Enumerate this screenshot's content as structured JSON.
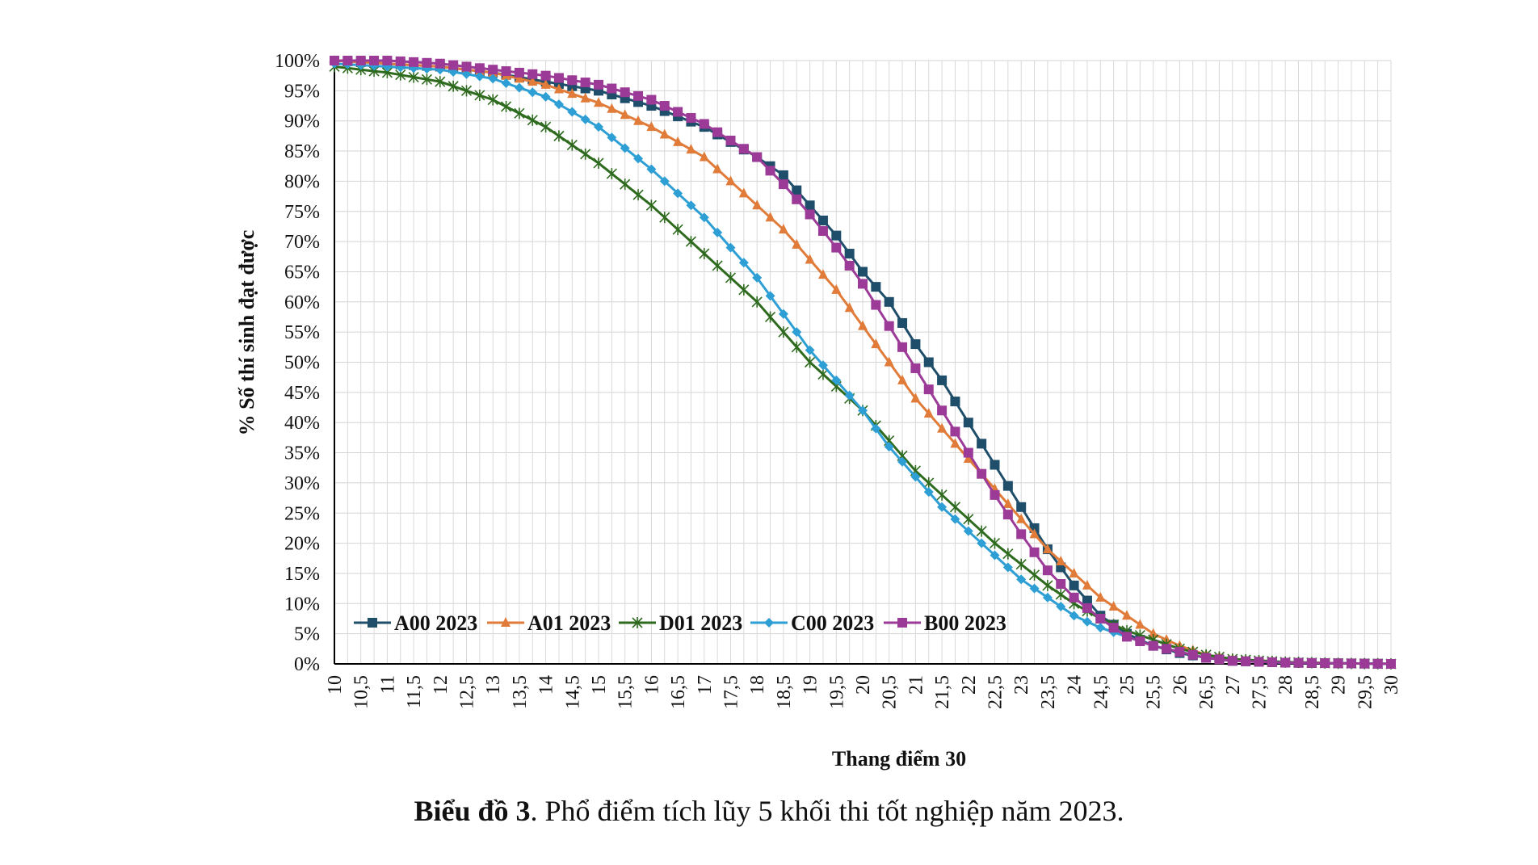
{
  "caption": {
    "label": "Biểu đồ 3",
    "text": ". Phổ điểm tích lũy 5 khối thi tốt nghiệp năm 2023."
  },
  "chart_data": {
    "type": "line",
    "xlabel": "Thang điểm 30",
    "ylabel": "% Số thí sinh đạt được",
    "xlim": [
      10,
      30
    ],
    "ylim": [
      0,
      100
    ],
    "x_step": 0.25,
    "x_tick_step": 0.5,
    "y_tick_step": 5,
    "grid": true,
    "legend_position": "bottom-left",
    "series": [
      {
        "name": "A00 2023",
        "color": "#1f4e6b",
        "marker": "square",
        "points": [
          [
            10,
            100
          ],
          [
            11,
            99.5
          ],
          [
            12,
            99
          ],
          [
            13,
            98
          ],
          [
            14,
            96.5
          ],
          [
            15,
            95
          ],
          [
            16,
            92.5
          ],
          [
            17,
            89
          ],
          [
            18,
            84
          ],
          [
            18.5,
            81
          ],
          [
            19,
            76
          ],
          [
            19.5,
            71
          ],
          [
            20,
            65
          ],
          [
            20.5,
            60
          ],
          [
            21,
            53
          ],
          [
            21.5,
            47
          ],
          [
            22,
            40
          ],
          [
            22.5,
            33
          ],
          [
            23,
            26
          ],
          [
            23.5,
            19
          ],
          [
            24,
            13
          ],
          [
            24.5,
            8
          ],
          [
            25,
            5
          ],
          [
            25.5,
            3
          ],
          [
            26,
            1.8
          ],
          [
            26.5,
            1
          ],
          [
            27,
            0.5
          ],
          [
            28,
            0.2
          ],
          [
            29,
            0.1
          ],
          [
            30,
            0
          ]
        ]
      },
      {
        "name": "A01 2023",
        "color": "#e07b39",
        "marker": "triangle",
        "points": [
          [
            10,
            100
          ],
          [
            11,
            99.5
          ],
          [
            12,
            99
          ],
          [
            13,
            98
          ],
          [
            14,
            96
          ],
          [
            15,
            93
          ],
          [
            16,
            89
          ],
          [
            17,
            84
          ],
          [
            17.5,
            80
          ],
          [
            18,
            76
          ],
          [
            18.5,
            72
          ],
          [
            19,
            67
          ],
          [
            19.5,
            62
          ],
          [
            20,
            56
          ],
          [
            20.5,
            50
          ],
          [
            21,
            44
          ],
          [
            21.5,
            39
          ],
          [
            22,
            34
          ],
          [
            22.5,
            29
          ],
          [
            23,
            24
          ],
          [
            23.5,
            19
          ],
          [
            24,
            15
          ],
          [
            24.5,
            11
          ],
          [
            25,
            8
          ],
          [
            25.5,
            5
          ],
          [
            26,
            3
          ],
          [
            26.5,
            1.5
          ],
          [
            27,
            0.8
          ],
          [
            28,
            0.3
          ],
          [
            29,
            0.1
          ],
          [
            30,
            0
          ]
        ]
      },
      {
        "name": "D01 2023",
        "color": "#2e6b1f",
        "marker": "asterisk",
        "points": [
          [
            10,
            99
          ],
          [
            11,
            98
          ],
          [
            12,
            96.5
          ],
          [
            13,
            93.5
          ],
          [
            14,
            89
          ],
          [
            15,
            83
          ],
          [
            16,
            76
          ],
          [
            17,
            68
          ],
          [
            17.5,
            64
          ],
          [
            18,
            60
          ],
          [
            18.5,
            55
          ],
          [
            19,
            50
          ],
          [
            19.5,
            46
          ],
          [
            20,
            42
          ],
          [
            20.5,
            37
          ],
          [
            21,
            32
          ],
          [
            21.5,
            28
          ],
          [
            22,
            24
          ],
          [
            22.5,
            20
          ],
          [
            23,
            16.5
          ],
          [
            23.5,
            13
          ],
          [
            24,
            10
          ],
          [
            24.5,
            7.5
          ],
          [
            25,
            5.5
          ],
          [
            25.5,
            4
          ],
          [
            26,
            2.5
          ],
          [
            26.5,
            1.5
          ],
          [
            27,
            0.8
          ],
          [
            28,
            0.3
          ],
          [
            29,
            0.1
          ],
          [
            30,
            0
          ]
        ]
      },
      {
        "name": "C00 2023",
        "color": "#2e9fd4",
        "marker": "diamond",
        "points": [
          [
            10,
            99.5
          ],
          [
            11,
            99
          ],
          [
            12,
            98.5
          ],
          [
            13,
            97
          ],
          [
            14,
            94
          ],
          [
            15,
            89
          ],
          [
            16,
            82
          ],
          [
            16.5,
            78
          ],
          [
            17,
            74
          ],
          [
            17.5,
            69
          ],
          [
            18,
            64
          ],
          [
            18.5,
            58
          ],
          [
            19,
            52
          ],
          [
            19.5,
            47
          ],
          [
            20,
            42
          ],
          [
            20.5,
            36
          ],
          [
            21,
            31
          ],
          [
            21.5,
            26
          ],
          [
            22,
            22
          ],
          [
            22.5,
            18
          ],
          [
            23,
            14
          ],
          [
            23.5,
            11
          ],
          [
            24,
            8
          ],
          [
            24.5,
            6
          ],
          [
            25,
            4.5
          ],
          [
            25.5,
            3
          ],
          [
            26,
            2
          ],
          [
            26.5,
            1
          ],
          [
            27,
            0.5
          ],
          [
            28,
            0.2
          ],
          [
            29,
            0.1
          ],
          [
            30,
            0
          ]
        ]
      },
      {
        "name": "B00 2023",
        "color": "#9b3a97",
        "marker": "square",
        "points": [
          [
            10,
            100
          ],
          [
            11,
            100
          ],
          [
            12,
            99.5
          ],
          [
            13,
            98.5
          ],
          [
            14,
            97.5
          ],
          [
            15,
            96
          ],
          [
            16,
            93.5
          ],
          [
            17,
            89.5
          ],
          [
            18,
            84
          ],
          [
            18.5,
            79.5
          ],
          [
            19,
            74.5
          ],
          [
            19.5,
            69
          ],
          [
            20,
            63
          ],
          [
            20.5,
            56
          ],
          [
            21,
            49
          ],
          [
            21.5,
            42
          ],
          [
            22,
            35
          ],
          [
            22.5,
            28
          ],
          [
            23,
            21.5
          ],
          [
            23.5,
            15.5
          ],
          [
            24,
            11
          ],
          [
            24.5,
            7.5
          ],
          [
            25,
            4.5
          ],
          [
            25.5,
            3
          ],
          [
            26,
            2
          ],
          [
            26.5,
            1
          ],
          [
            27,
            0.5
          ],
          [
            28,
            0.2
          ],
          [
            29,
            0.1
          ],
          [
            30,
            0
          ]
        ]
      }
    ]
  }
}
